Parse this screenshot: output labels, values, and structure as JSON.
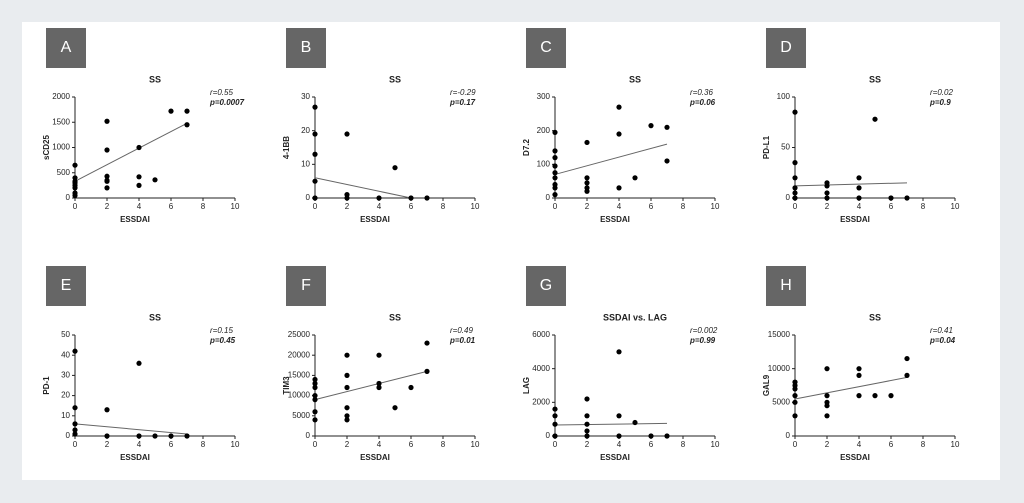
{
  "chart_data": [
    {
      "type": "scatter",
      "panel": "A",
      "title": "SS",
      "r_label": "r=0.55",
      "p_label": "p=0.0007",
      "xlabel": "ESSDAI",
      "ylabel": "sCD25",
      "color": "#000000",
      "x": [
        0,
        0,
        0,
        0,
        0,
        0,
        0,
        0,
        2,
        2,
        2,
        2,
        2,
        2,
        4,
        4,
        4,
        5,
        6,
        7,
        7
      ],
      "values": [
        650,
        400,
        330,
        300,
        250,
        200,
        100,
        50,
        1520,
        950,
        430,
        350,
        330,
        200,
        1000,
        420,
        250,
        360,
        1720,
        1720,
        1450
      ],
      "fit": {
        "x": [
          0,
          7
        ],
        "values": [
          330,
          1480
        ]
      },
      "xlim": [
        0,
        10
      ],
      "ylim": [
        0,
        2000
      ],
      "xticks": [
        0,
        2,
        4,
        6,
        8,
        10
      ],
      "yticks": [
        0,
        500,
        1000,
        1500,
        2000
      ]
    },
    {
      "type": "scatter",
      "panel": "B",
      "title": "SS",
      "r_label": "r=-0.29",
      "p_label": "p=0.17",
      "xlabel": "ESSDAI",
      "ylabel": "4-1BB",
      "color": "#000000",
      "x": [
        0,
        0,
        0,
        0,
        0,
        2,
        2,
        2,
        4,
        5,
        6,
        7
      ],
      "values": [
        27,
        19,
        13,
        5,
        0,
        19,
        1,
        0,
        0,
        9,
        0,
        0
      ],
      "fit": {
        "x": [
          0,
          6
        ],
        "values": [
          6,
          0
        ]
      },
      "xlim": [
        0,
        10
      ],
      "ylim": [
        0,
        30
      ],
      "xticks": [
        0,
        2,
        4,
        6,
        8,
        10
      ],
      "yticks": [
        0,
        10,
        20,
        30
      ]
    },
    {
      "type": "scatter",
      "panel": "C",
      "title": "SS",
      "r_label": "r=0.36",
      "p_label": "p=0.06",
      "xlabel": "ESSDAI",
      "ylabel": "D7.2",
      "color": "#000000",
      "x": [
        0,
        0,
        0,
        0,
        0,
        0,
        0,
        0,
        0,
        2,
        2,
        2,
        2,
        2,
        4,
        4,
        4,
        5,
        6,
        7,
        7
      ],
      "values": [
        195,
        140,
        120,
        95,
        75,
        60,
        40,
        30,
        10,
        165,
        60,
        45,
        30,
        20,
        270,
        190,
        30,
        60,
        215,
        210,
        110
      ],
      "fit": {
        "x": [
          0,
          7
        ],
        "values": [
          70,
          160
        ]
      },
      "xlim": [
        0,
        10
      ],
      "ylim": [
        0,
        300
      ],
      "xticks": [
        0,
        2,
        4,
        6,
        8,
        10
      ],
      "yticks": [
        0,
        100,
        200,
        300
      ]
    },
    {
      "type": "scatter",
      "panel": "D",
      "title": "SS",
      "r_label": "r=0.02",
      "p_label": "p=0.9",
      "xlabel": "ESSDAI",
      "ylabel": "PD-L1",
      "color": "#000000",
      "x": [
        0,
        0,
        0,
        0,
        0,
        0,
        2,
        2,
        2,
        2,
        4,
        4,
        4,
        5,
        6,
        7
      ],
      "values": [
        85,
        35,
        20,
        10,
        5,
        0,
        15,
        12,
        5,
        0,
        20,
        10,
        0,
        78,
        0,
        0
      ],
      "fit": {
        "x": [
          0,
          7
        ],
        "values": [
          12,
          15
        ]
      },
      "xlim": [
        0,
        10
      ],
      "ylim": [
        0,
        100
      ],
      "xticks": [
        0,
        2,
        4,
        6,
        8,
        10
      ],
      "yticks": [
        0,
        50,
        100
      ]
    },
    {
      "type": "scatter",
      "panel": "E",
      "title": "SS",
      "r_label": "r=0.15",
      "p_label": "p=0.45",
      "xlabel": "ESSDAI",
      "ylabel": "PD-1",
      "color": "#000000",
      "x": [
        0,
        0,
        0,
        0,
        0,
        2,
        2,
        4,
        4,
        5,
        6,
        7
      ],
      "values": [
        42,
        14,
        6,
        3,
        1,
        13,
        0,
        36,
        0,
        0,
        0,
        0
      ],
      "fit": {
        "x": [
          0,
          7
        ],
        "values": [
          6,
          1
        ]
      },
      "xlim": [
        0,
        10
      ],
      "ylim": [
        0,
        50
      ],
      "xticks": [
        0,
        2,
        4,
        6,
        8,
        10
      ],
      "yticks": [
        0,
        10,
        20,
        30,
        40,
        50
      ]
    },
    {
      "type": "scatter",
      "panel": "F",
      "title": "SS",
      "r_label": "r=0.49",
      "p_label": "p=0.01",
      "xlabel": "ESSDAI",
      "ylabel": "TIM3",
      "color": "#000000",
      "x": [
        0,
        0,
        0,
        0,
        0,
        0,
        0,
        2,
        2,
        2,
        2,
        2,
        2,
        4,
        4,
        4,
        5,
        6,
        7,
        7
      ],
      "values": [
        14000,
        13000,
        12000,
        10000,
        9000,
        6000,
        4000,
        20000,
        15000,
        12000,
        7000,
        5000,
        4000,
        20000,
        13000,
        12000,
        7000,
        12000,
        23000,
        16000
      ],
      "fit": {
        "x": [
          0,
          7
        ],
        "values": [
          9000,
          16000
        ]
      },
      "xlim": [
        0,
        10
      ],
      "ylim": [
        0,
        25000
      ],
      "xticks": [
        0,
        2,
        4,
        6,
        8,
        10
      ],
      "yticks": [
        0,
        5000,
        10000,
        15000,
        20000,
        25000
      ]
    },
    {
      "type": "scatter",
      "panel": "G",
      "title": "SSDAI vs. LAG",
      "r_label": "r=0.002",
      "p_label": "p=0.99",
      "xlabel": "ESSDAI",
      "ylabel": "LAG",
      "color": "#000000",
      "x": [
        0,
        0,
        0,
        0,
        2,
        2,
        2,
        2,
        2,
        4,
        4,
        4,
        5,
        6,
        7
      ],
      "values": [
        1600,
        1200,
        700,
        0,
        2200,
        1200,
        700,
        300,
        0,
        5000,
        1200,
        0,
        800,
        0,
        0
      ],
      "fit": {
        "x": [
          0,
          7
        ],
        "values": [
          650,
          750
        ]
      },
      "xlim": [
        0,
        10
      ],
      "ylim": [
        0,
        6000
      ],
      "xticks": [
        0,
        2,
        4,
        6,
        8,
        10
      ],
      "yticks": [
        0,
        2000,
        4000,
        6000
      ]
    },
    {
      "type": "scatter",
      "panel": "H",
      "title": "SS",
      "r_label": "r=0.41",
      "p_label": "p=0.04",
      "xlabel": "ESSDAI",
      "ylabel": "GAL9",
      "color": "#000000",
      "x": [
        0,
        0,
        0,
        0,
        0,
        0,
        2,
        2,
        2,
        2,
        2,
        4,
        4,
        4,
        5,
        6,
        7,
        7
      ],
      "values": [
        8000,
        7500,
        7000,
        6000,
        5000,
        3000,
        10000,
        6000,
        5000,
        4500,
        3000,
        10000,
        9000,
        6000,
        6000,
        6000,
        11500,
        9000
      ],
      "fit": {
        "x": [
          0,
          7
        ],
        "values": [
          5500,
          8700
        ]
      },
      "xlim": [
        0,
        10
      ],
      "ylim": [
        0,
        15000
      ],
      "xticks": [
        0,
        2,
        4,
        6,
        8,
        10
      ],
      "yticks": [
        0,
        5000,
        10000,
        15000
      ]
    }
  ]
}
